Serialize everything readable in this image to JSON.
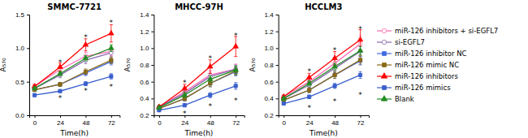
{
  "chart_data": [
    {
      "type": "line",
      "title": "SMMC-7721",
      "xlabel": "Time(h)",
      "ylabel": "A₅₇₀",
      "x": [
        0,
        24,
        48,
        72
      ],
      "xlim": [
        -5,
        80
      ],
      "xticks": [
        0,
        24,
        48,
        72
      ],
      "ylim": [
        0.0,
        1.5
      ],
      "yticks": [
        {
          "value": 0.0,
          "label": "0.0"
        },
        0.5,
        {
          "value": 1.0,
          "label": "1.0"
        },
        1.5
      ],
      "grid": false,
      "series": [
        {
          "color": "#FF69B4",
          "marker": "circle-open",
          "values": [
            0.43,
            0.68,
            0.88,
            0.95
          ],
          "errors": [
            0.03,
            0.05,
            0.06,
            0.06
          ]
        },
        {
          "color": "#8B6BB1",
          "marker": "circle-open",
          "values": [
            0.4,
            0.6,
            0.82,
            0.93
          ],
          "errors": [
            0.02,
            0.04,
            0.05,
            0.06
          ]
        },
        {
          "color": "#4169E1",
          "marker": "square",
          "values": [
            0.38,
            0.46,
            0.63,
            0.8
          ],
          "errors": [
            0.02,
            0.03,
            0.04,
            0.05
          ]
        },
        {
          "color": "#8B6914",
          "marker": "square",
          "values": [
            0.38,
            0.46,
            0.65,
            0.82
          ],
          "errors": [
            0.02,
            0.03,
            0.04,
            0.05
          ]
        },
        {
          "color": "#FF0000",
          "marker": "triangle",
          "values": [
            0.43,
            0.72,
            1.05,
            1.22
          ],
          "errors": [
            0.03,
            0.06,
            0.09,
            0.13
          ]
        },
        {
          "color": "#3A5FCD",
          "marker": "square",
          "values": [
            0.3,
            0.36,
            0.47,
            0.58
          ],
          "errors": [
            0.02,
            0.02,
            0.03,
            0.04
          ]
        },
        {
          "color": "#228B22",
          "marker": "triangle",
          "values": [
            0.4,
            0.62,
            0.85,
            1.0
          ],
          "errors": [
            0.02,
            0.03,
            0.04,
            0.05
          ]
        }
      ],
      "annotations": [
        {
          "text": "*",
          "x": 24,
          "y": 0.78
        },
        {
          "text": "*",
          "x": 48,
          "y": 1.15
        },
        {
          "text": "*",
          "x": 72,
          "y": 1.37
        },
        {
          "text": "*",
          "x": 24,
          "y": 0.25
        },
        {
          "text": "*",
          "x": 48,
          "y": 0.36
        },
        {
          "text": "*",
          "x": 72,
          "y": 0.42
        }
      ]
    },
    {
      "type": "line",
      "title": "MHCC-97H",
      "xlabel": "Time(h)",
      "ylabel": "A₅₇₀",
      "x": [
        0,
        24,
        48,
        72
      ],
      "xlim": [
        -5,
        80
      ],
      "xticks": [
        0,
        24,
        48,
        72
      ],
      "ylim": [
        0.2,
        1.4
      ],
      "yticks": [
        0.2,
        0.4,
        0.6,
        0.8,
        {
          "value": 1.0,
          "label": "1.0"
        },
        1.2,
        1.4
      ],
      "grid": false,
      "series": [
        {
          "color": "#FF69B4",
          "marker": "circle-open",
          "values": [
            0.3,
            0.48,
            0.68,
            0.75
          ],
          "errors": [
            0.02,
            0.04,
            0.05,
            0.06
          ]
        },
        {
          "color": "#8B6BB1",
          "marker": "circle-open",
          "values": [
            0.3,
            0.46,
            0.66,
            0.75
          ],
          "errors": [
            0.02,
            0.03,
            0.04,
            0.05
          ]
        },
        {
          "color": "#4169E1",
          "marker": "square",
          "values": [
            0.28,
            0.4,
            0.58,
            0.72
          ],
          "errors": [
            0.02,
            0.03,
            0.04,
            0.05
          ]
        },
        {
          "color": "#8B6914",
          "marker": "square",
          "values": [
            0.28,
            0.4,
            0.58,
            0.73
          ],
          "errors": [
            0.02,
            0.03,
            0.04,
            0.05
          ]
        },
        {
          "color": "#FF0000",
          "marker": "triangle",
          "values": [
            0.3,
            0.52,
            0.78,
            1.02
          ],
          "errors": [
            0.02,
            0.05,
            0.08,
            0.12
          ]
        },
        {
          "color": "#3A5FCD",
          "marker": "square",
          "values": [
            0.26,
            0.32,
            0.44,
            0.55
          ],
          "errors": [
            0.01,
            0.02,
            0.03,
            0.04
          ]
        },
        {
          "color": "#228B22",
          "marker": "triangle",
          "values": [
            0.29,
            0.44,
            0.63,
            0.74
          ],
          "errors": [
            0.02,
            0.03,
            0.04,
            0.05
          ]
        }
      ],
      "annotations": [
        {
          "text": "*",
          "x": 24,
          "y": 0.58
        },
        {
          "text": "*",
          "x": 48,
          "y": 0.87
        },
        {
          "text": "*",
          "x": 72,
          "y": 1.14
        },
        {
          "text": "*",
          "x": 24,
          "y": 0.21
        },
        {
          "text": "*",
          "x": 48,
          "y": 0.3
        },
        {
          "text": "*",
          "x": 72,
          "y": 0.37
        }
      ]
    },
    {
      "type": "line",
      "title": "HCCLM3",
      "xlabel": "Time(h)",
      "ylabel": "A₅₇₀",
      "x": [
        0,
        24,
        48,
        72
      ],
      "xlim": [
        -5,
        80
      ],
      "xticks": [
        0,
        24,
        48,
        72
      ],
      "ylim": [
        0.2,
        1.4
      ],
      "yticks": [
        0.2,
        0.4,
        0.6,
        0.8,
        {
          "value": 1.0,
          "label": "1.0"
        },
        1.2,
        1.4
      ],
      "grid": false,
      "legend": "right",
      "series": [
        {
          "name": "miR-126 inhibitors + si-EGFL7",
          "color": "#FF69B4",
          "marker": "circle-open",
          "values": [
            0.42,
            0.6,
            0.82,
            1.05
          ],
          "errors": [
            0.02,
            0.05,
            0.07,
            0.1
          ]
        },
        {
          "name": "si-EGFL7",
          "color": "#8B6BB1",
          "marker": "circle-open",
          "values": [
            0.4,
            0.56,
            0.76,
            0.96
          ],
          "errors": [
            0.02,
            0.04,
            0.05,
            0.06
          ]
        },
        {
          "name": "miR-126 inhibitor NC",
          "color": "#4169E1",
          "marker": "square",
          "values": [
            0.38,
            0.5,
            0.68,
            0.85
          ],
          "errors": [
            0.02,
            0.03,
            0.04,
            0.05
          ]
        },
        {
          "name": "miR-126 mimic NC",
          "color": "#8B6914",
          "marker": "square",
          "values": [
            0.38,
            0.5,
            0.68,
            0.86
          ],
          "errors": [
            0.02,
            0.03,
            0.04,
            0.05
          ]
        },
        {
          "name": "miR-126 inhibitors",
          "color": "#FF0000",
          "marker": "triangle",
          "values": [
            0.42,
            0.65,
            0.88,
            1.1
          ],
          "errors": [
            0.02,
            0.05,
            0.08,
            0.12
          ]
        },
        {
          "name": "miR-126 mimics",
          "color": "#3A5FCD",
          "marker": "square",
          "values": [
            0.34,
            0.42,
            0.55,
            0.68
          ],
          "errors": [
            0.01,
            0.02,
            0.03,
            0.04
          ]
        },
        {
          "name": "Blank",
          "color": "#228B22",
          "marker": "triangle",
          "values": [
            0.4,
            0.58,
            0.78,
            0.97
          ],
          "errors": [
            0.02,
            0.03,
            0.04,
            0.05
          ]
        }
      ],
      "annotations": [
        {
          "text": "*",
          "x": 24,
          "y": 0.72
        },
        {
          "text": "*",
          "x": 48,
          "y": 0.97
        },
        {
          "text": "*",
          "x": 72,
          "y": 1.22
        },
        {
          "text": "*",
          "x": 24,
          "y": 0.28
        },
        {
          "text": "*",
          "x": 48,
          "y": 0.36
        },
        {
          "text": "*",
          "x": 72,
          "y": 0.44
        }
      ]
    }
  ]
}
